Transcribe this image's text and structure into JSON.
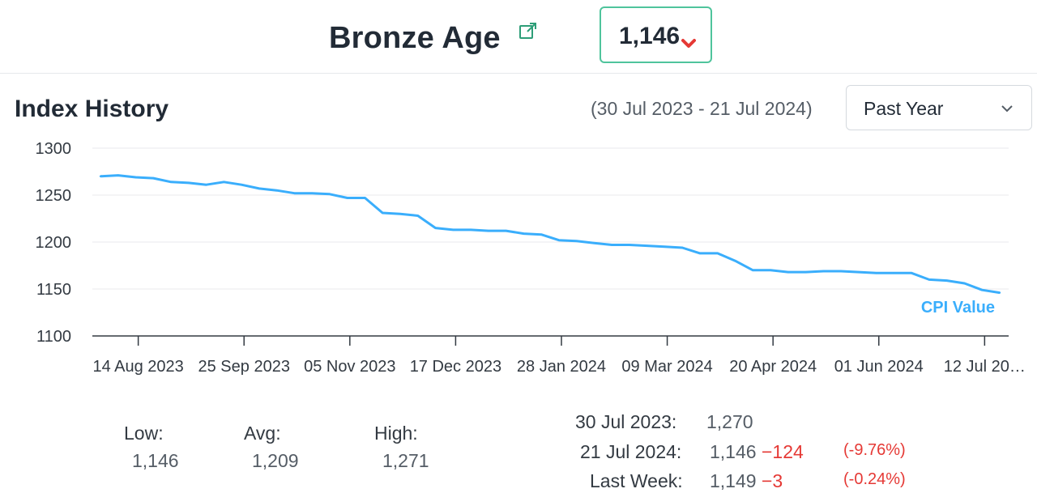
{
  "header": {
    "title": "Bronze Age",
    "current_value": "1,146",
    "trend": "down",
    "colors": {
      "badge_border": "#4fc49c",
      "down": "#e53935",
      "link": "#2e9e78"
    }
  },
  "section": {
    "title": "Index History",
    "date_range": "(30 Jul 2023 - 21 Jul 2024)",
    "period": "Past Year"
  },
  "chart_data": {
    "type": "line",
    "x_ticks": [
      "14 Aug 2023",
      "25 Sep 2023",
      "05 Nov 2023",
      "17 Dec 2023",
      "28 Jan 2024",
      "09 Mar 2024",
      "20 Apr 2024",
      "01 Jun 2024",
      "12 Jul 20…"
    ],
    "y_ticks": [
      "1300",
      "1250",
      "1200",
      "1150",
      "1100"
    ],
    "ylim": [
      1100,
      1300
    ],
    "series": [
      {
        "name": "CPI Value",
        "color": "#3aaefc",
        "x": [
          "2023-07-30",
          "2023-08-06",
          "2023-08-13",
          "2023-08-20",
          "2023-08-27",
          "2023-09-03",
          "2023-09-10",
          "2023-09-17",
          "2023-09-24",
          "2023-10-01",
          "2023-10-08",
          "2023-10-15",
          "2023-10-22",
          "2023-10-29",
          "2023-11-05",
          "2023-11-12",
          "2023-11-19",
          "2023-11-26",
          "2023-12-03",
          "2023-12-10",
          "2023-12-17",
          "2023-12-24",
          "2023-12-31",
          "2024-01-07",
          "2024-01-14",
          "2024-01-21",
          "2024-01-28",
          "2024-02-04",
          "2024-02-11",
          "2024-02-18",
          "2024-02-25",
          "2024-03-03",
          "2024-03-10",
          "2024-03-17",
          "2024-03-24",
          "2024-03-31",
          "2024-04-07",
          "2024-04-14",
          "2024-04-21",
          "2024-04-28",
          "2024-05-05",
          "2024-05-12",
          "2024-05-19",
          "2024-05-26",
          "2024-06-02",
          "2024-06-09",
          "2024-06-16",
          "2024-06-23",
          "2024-06-30",
          "2024-07-07",
          "2024-07-14",
          "2024-07-21"
        ],
        "values": [
          1270,
          1271,
          1269,
          1268,
          1264,
          1263,
          1261,
          1264,
          1261,
          1257,
          1255,
          1252,
          1252,
          1251,
          1247,
          1247,
          1231,
          1230,
          1228,
          1215,
          1213,
          1213,
          1212,
          1212,
          1209,
          1208,
          1202,
          1201,
          1199,
          1197,
          1197,
          1196,
          1195,
          1194,
          1188,
          1188,
          1180,
          1170,
          1170,
          1168,
          1168,
          1169,
          1169,
          1168,
          1167,
          1167,
          1167,
          1160,
          1159,
          1156,
          1149,
          1146
        ]
      }
    ],
    "grid": true,
    "legend": "bottom-right"
  },
  "stats": {
    "low_label": "Low:",
    "low_value": "1,146",
    "avg_label": "Avg:",
    "avg_value": "1,209",
    "high_label": "High:",
    "high_value": "1,271"
  },
  "changes": {
    "start_label": "30 Jul 2023:",
    "start_value": "1,270",
    "end_label": "21 Jul 2024:",
    "end_value": "1,146",
    "end_change": "−124",
    "end_pct": "(-9.76%)",
    "week_label": "Last Week:",
    "week_value": "1,149",
    "week_change": "−3",
    "week_pct": "(-0.24%)"
  }
}
